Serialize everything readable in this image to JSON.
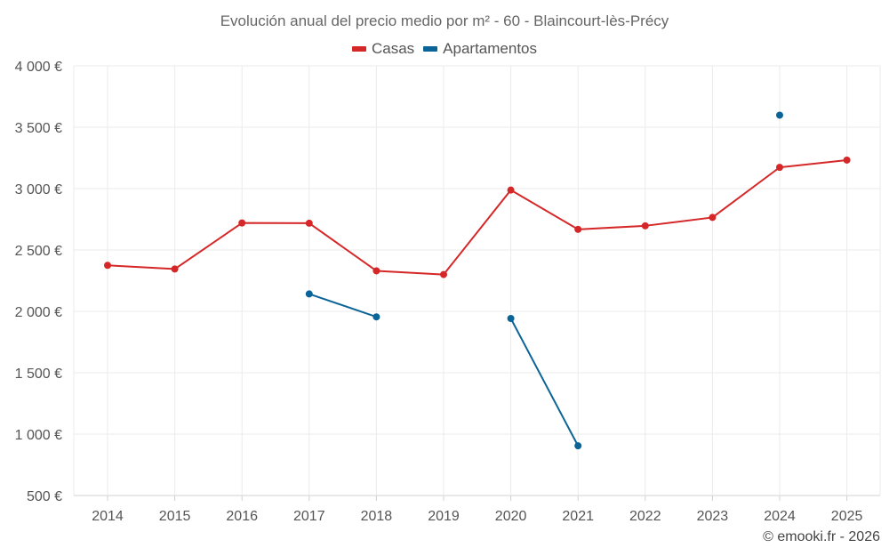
{
  "chart_data": {
    "type": "line",
    "title": "Evolución anual del precio medio por m² - 60 - Blaincourt-lès-Précy",
    "xlabel": "",
    "ylabel": "",
    "categories": [
      "2014",
      "2015",
      "2016",
      "2017",
      "2018",
      "2019",
      "2020",
      "2021",
      "2022",
      "2023",
      "2024",
      "2025"
    ],
    "ylim": [
      500,
      4000
    ],
    "yticks": [
      500,
      1000,
      1500,
      2000,
      2500,
      3000,
      3500,
      4000
    ],
    "ytick_labels": [
      "500 €",
      "1 000 €",
      "1 500 €",
      "2 000 €",
      "2 500 €",
      "3 000 €",
      "3 500 €",
      "4 000 €"
    ],
    "grid": true,
    "legend_position": "top-center",
    "series": [
      {
        "name": "Casas",
        "color": "#d62728",
        "values": [
          2375,
          2345,
          2720,
          2718,
          2330,
          2300,
          2988,
          2668,
          2697,
          2765,
          3173,
          3232
        ]
      },
      {
        "name": "Apartamentos",
        "color": "#0b6497",
        "values": [
          null,
          null,
          null,
          2142,
          1955,
          null,
          1942,
          905,
          null,
          null,
          3598,
          null
        ]
      }
    ]
  },
  "credit": "© emooki.fr - 2026"
}
